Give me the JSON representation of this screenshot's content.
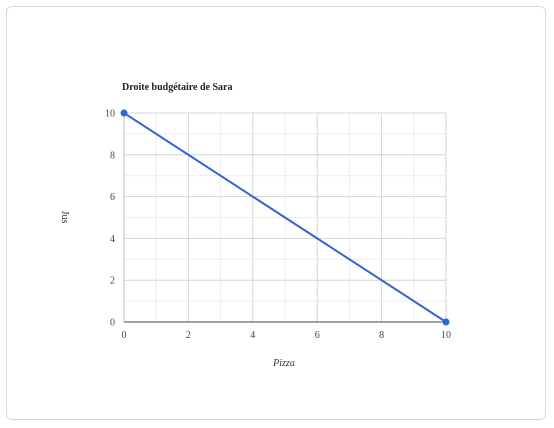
{
  "chart_data": {
    "type": "line",
    "title": "Droite budgétaire de Sara",
    "xlabel": "Pizza",
    "ylabel": "Jus",
    "xlim": [
      0,
      10
    ],
    "ylim": [
      0,
      10
    ],
    "x_ticks": [
      0,
      2,
      4,
      6,
      8,
      10
    ],
    "y_ticks": [
      0,
      2,
      4,
      6,
      8,
      10
    ],
    "grid": true,
    "series": [
      {
        "points": [
          {
            "x": 0,
            "y": 10
          },
          {
            "x": 10,
            "y": 0
          }
        ],
        "color": "#3366cc"
      }
    ]
  }
}
